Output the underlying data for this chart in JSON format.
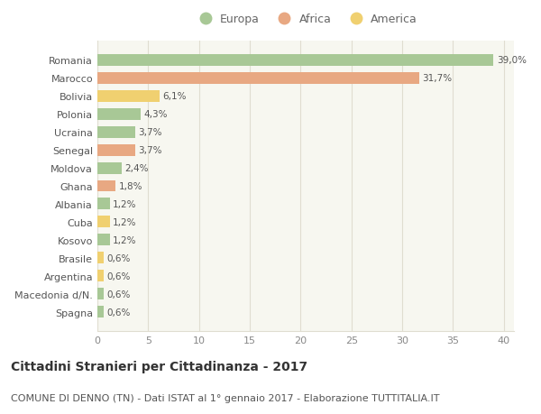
{
  "title": "Cittadini Stranieri per Cittadinanza - 2017",
  "subtitle": "COMUNE DI DENNO (TN) - Dati ISTAT al 1° gennaio 2017 - Elaborazione TUTTITALIA.IT",
  "categories": [
    "Romania",
    "Marocco",
    "Bolivia",
    "Polonia",
    "Ucraina",
    "Senegal",
    "Moldova",
    "Ghana",
    "Albania",
    "Cuba",
    "Kosovo",
    "Brasile",
    "Argentina",
    "Macedonia d/N.",
    "Spagna"
  ],
  "values": [
    39.0,
    31.7,
    6.1,
    4.3,
    3.7,
    3.7,
    2.4,
    1.8,
    1.2,
    1.2,
    1.2,
    0.6,
    0.6,
    0.6,
    0.6
  ],
  "labels": [
    "39,0%",
    "31,7%",
    "6,1%",
    "4,3%",
    "3,7%",
    "3,7%",
    "2,4%",
    "1,8%",
    "1,2%",
    "1,2%",
    "1,2%",
    "0,6%",
    "0,6%",
    "0,6%",
    "0,6%"
  ],
  "continents": [
    "Europa",
    "Africa",
    "America",
    "Europa",
    "Europa",
    "Africa",
    "Europa",
    "Africa",
    "Europa",
    "America",
    "Europa",
    "America",
    "America",
    "Europa",
    "Europa"
  ],
  "colors": {
    "Europa": "#a8c896",
    "Africa": "#e8a882",
    "America": "#f0d070"
  },
  "xlim": [
    0,
    41
  ],
  "xticks": [
    0,
    5,
    10,
    15,
    20,
    25,
    30,
    35,
    40
  ],
  "background_color": "#ffffff",
  "plot_bg_color": "#f7f7f0",
  "grid_color": "#e0ddd0",
  "bar_height": 0.65,
  "title_fontsize": 10,
  "subtitle_fontsize": 8,
  "label_fontsize": 7.5,
  "tick_fontsize": 8,
  "legend_fontsize": 9
}
